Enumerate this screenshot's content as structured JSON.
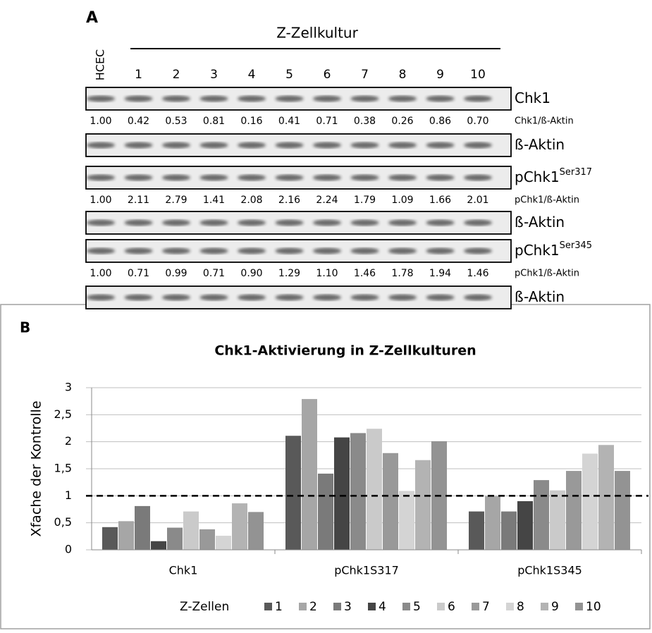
{
  "panel_a": {
    "label": "A",
    "group_label": "Z-Zellkultur",
    "lanes": [
      "HCEC",
      "1",
      "2",
      "3",
      "4",
      "5",
      "6",
      "7",
      "8",
      "9",
      "10"
    ],
    "blots": [
      {
        "label": "Chk1",
        "ratio_label": "Chk1/ß-Aktin",
        "ratios": [
          "1.00",
          "0.42",
          "0.53",
          "0.81",
          "0.16",
          "0.41",
          "0.71",
          "0.38",
          "0.26",
          "0.86",
          "0.70"
        ]
      },
      {
        "label": "ß-Aktin"
      },
      {
        "label": "pChk1",
        "superscript": "Ser317",
        "ratio_label": "pChk1/ß-Aktin",
        "ratios": [
          "1.00",
          "2.11",
          "2.79",
          "1.41",
          "2.08",
          "2.16",
          "2.24",
          "1.79",
          "1.09",
          "1.66",
          "2.01"
        ]
      },
      {
        "label": "ß-Aktin"
      },
      {
        "label": "pChk1",
        "superscript": "Ser345",
        "ratio_label": "pChk1/ß-Aktin",
        "ratios": [
          "1.00",
          "0.71",
          "0.99",
          "0.71",
          "0.90",
          "1.29",
          "1.10",
          "1.46",
          "1.78",
          "1.94",
          "1.46"
        ]
      },
      {
        "label": "ß-Aktin"
      }
    ]
  },
  "chart_data": {
    "type": "bar",
    "panel_label": "B",
    "title": "Chk1-Aktivierung in Z-Zellkulturen",
    "y_label": "Xfache der Kontrolle",
    "legend_title": "Z-Zellen",
    "categories": [
      "Chk1",
      "pChk1S317",
      "pChk1S345"
    ],
    "series": [
      {
        "name": "1",
        "color": "#595959",
        "values": [
          0.42,
          2.11,
          0.71
        ]
      },
      {
        "name": "2",
        "color": "#a6a6a6",
        "values": [
          0.53,
          2.79,
          0.99
        ]
      },
      {
        "name": "3",
        "color": "#7a7a7a",
        "values": [
          0.81,
          1.41,
          0.71
        ]
      },
      {
        "name": "4",
        "color": "#454545",
        "values": [
          0.16,
          2.08,
          0.9
        ]
      },
      {
        "name": "5",
        "color": "#8a8a8a",
        "values": [
          0.41,
          2.16,
          1.29
        ]
      },
      {
        "name": "6",
        "color": "#cacaca",
        "values": [
          0.71,
          2.24,
          1.1
        ]
      },
      {
        "name": "7",
        "color": "#999999",
        "values": [
          0.38,
          1.79,
          1.46
        ]
      },
      {
        "name": "8",
        "color": "#d4d4d4",
        "values": [
          0.26,
          1.09,
          1.78
        ]
      },
      {
        "name": "9",
        "color": "#b3b3b3",
        "values": [
          0.86,
          1.66,
          1.94
        ]
      },
      {
        "name": "10",
        "color": "#939393",
        "values": [
          0.7,
          2.01,
          1.46
        ]
      }
    ],
    "ylim": [
      0,
      3
    ],
    "yticks": [
      0,
      {
        "value": 0.5,
        "label": "0,5"
      },
      1,
      {
        "value": 1.5,
        "label": "1,5"
      },
      2,
      {
        "value": 2.5,
        "label": "2,5"
      },
      3
    ],
    "grid": true,
    "reference_line": 1,
    "legend": "bottom"
  }
}
